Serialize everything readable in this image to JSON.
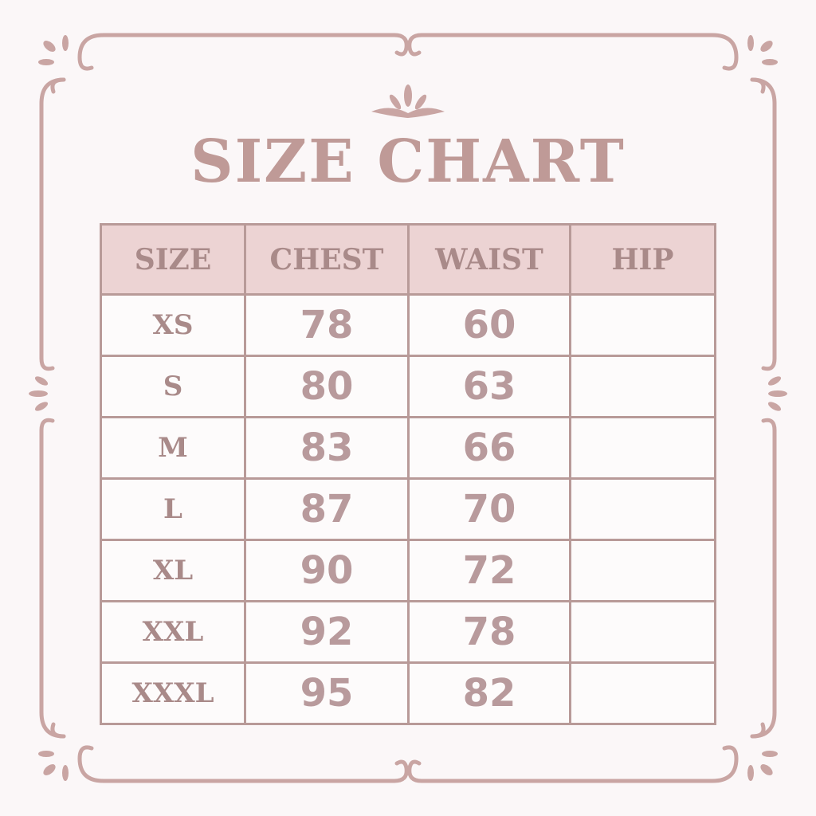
{
  "title": "SIZE CHART",
  "colors": {
    "accent": "#bf9a97",
    "header_bg": "#ecd3d3",
    "border": "#b89a98",
    "background": "#fbf7f8"
  },
  "table": {
    "headers": [
      "SIZE",
      "CHEST",
      "WAIST",
      "HIP"
    ],
    "rows": [
      [
        "XS",
        "78",
        "60",
        ""
      ],
      [
        "S",
        "80",
        "63",
        ""
      ],
      [
        "M",
        "83",
        "66",
        ""
      ],
      [
        "L",
        "87",
        "70",
        ""
      ],
      [
        "XL",
        "90",
        "72",
        ""
      ],
      [
        "XXL",
        "92",
        "78",
        ""
      ],
      [
        "XXXL",
        "95",
        "82",
        ""
      ]
    ]
  }
}
